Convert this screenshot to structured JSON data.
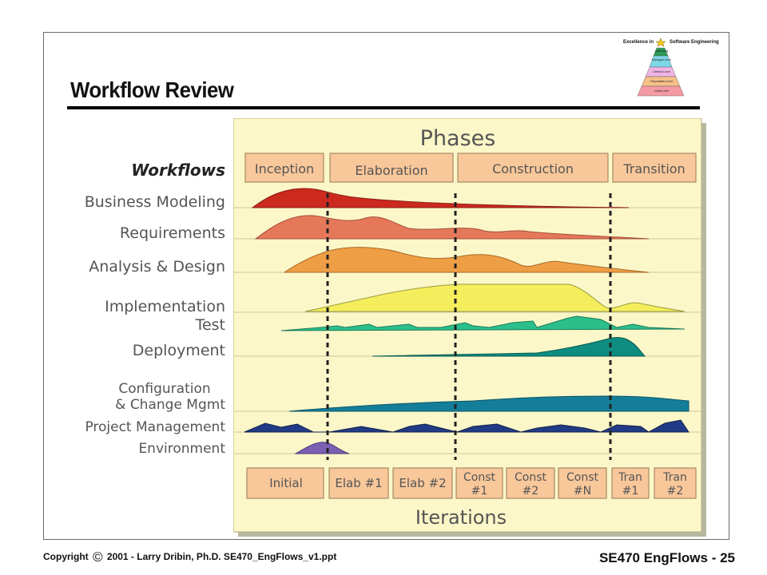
{
  "slide": {
    "title": "Workflow Review",
    "footer_left": "Copyright",
    "footer_copy_symbol": "©",
    "footer_rest": "2001 - Larry Dribin, Ph.D. SE470_EngFlows_v1.ppt",
    "footer_right": "SE470 EngFlows - 25"
  },
  "logo": {
    "text_left": "Excellence in",
    "text_right": "Software Engineering",
    "levels": [
      "Optimizing",
      "Managed Level",
      "Defined Level",
      "Repeatable Level",
      "Initial Level"
    ]
  },
  "diagram": {
    "phases_title": "Phases",
    "workflows_title": "Workflows",
    "phases": [
      "Inception",
      "Elaboration",
      "Construction",
      "Transition"
    ],
    "workflows": [
      "Business Modeling",
      "Requirements",
      "Analysis & Design",
      "Implementation",
      "Test",
      "Deployment",
      "Configuration",
      "& Change Mgmt",
      "Project Management",
      "Environment"
    ],
    "iterations": [
      "Initial",
      "Elab #1",
      "Elab #2",
      "Const",
      "#1",
      "Const",
      "#2",
      "Const",
      "#N",
      "Tran",
      "#1",
      "Tran",
      "#2"
    ],
    "iterations_title": "Iterations",
    "colors": {
      "panel": "#fbf7c8",
      "box_fill": "#f8c79a",
      "business": "#cc2a1e",
      "requirements": "#e6785a",
      "analysis": "#ee9e44",
      "implementation": "#f4ee5c",
      "test": "#2bbf8b",
      "deployment": "#0e8c80",
      "config": "#147e9a",
      "project": "#223b86",
      "environment": "#7b5fb2"
    }
  }
}
